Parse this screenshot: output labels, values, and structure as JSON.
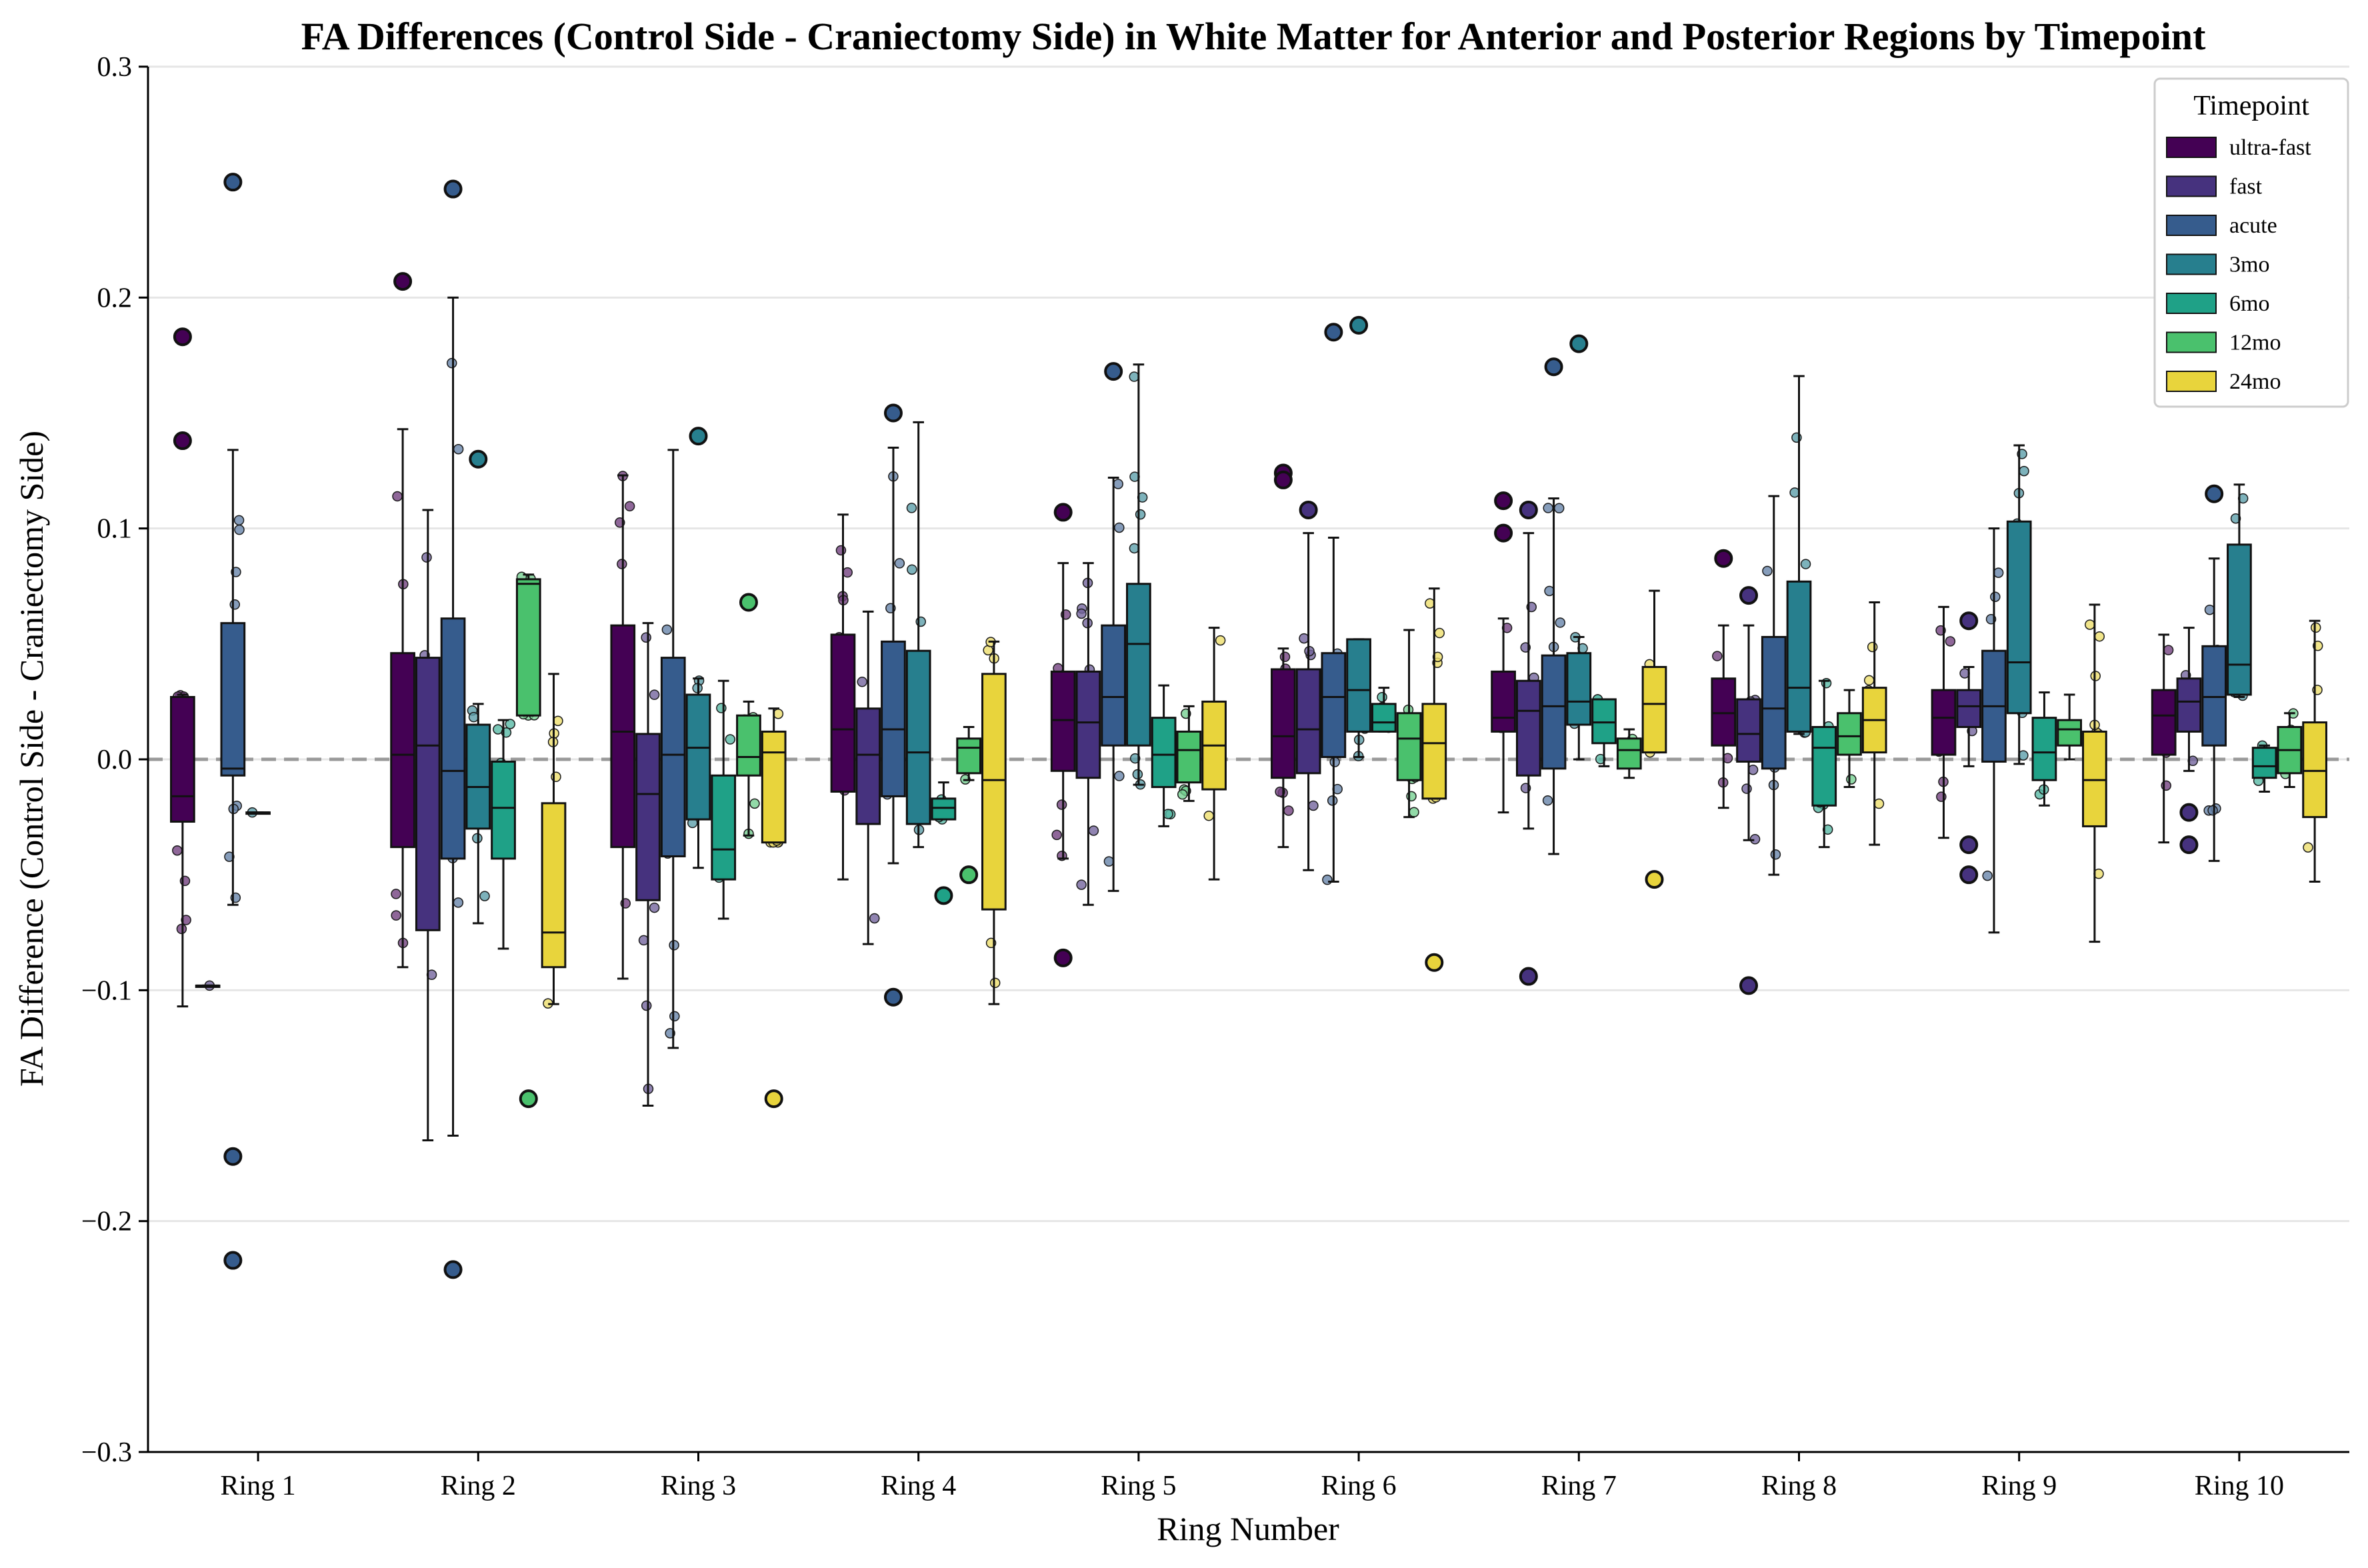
{
  "chart_data": {
    "type": "box",
    "title": "FA Differences (Control Side - Craniectomy Side) in White Matter for Anterior and Posterior Regions by Timepoint",
    "xlabel": "Ring Number",
    "ylabel": "FA Difference (Control Side - Craniectomy Side)",
    "ylim": [
      -0.3,
      0.3
    ],
    "yticks": [
      -0.3,
      -0.2,
      -0.1,
      0.0,
      0.1,
      0.2,
      0.3
    ],
    "ytick_labels": [
      "−0.3",
      "−0.2",
      "−0.1",
      "0.0",
      "0.1",
      "0.2",
      "0.3"
    ],
    "grid": "horizontal",
    "reference_line": 0.0,
    "legend_title": "Timepoint",
    "legend_position": "top-right",
    "categories": [
      "Ring 1",
      "Ring 2",
      "Ring 3",
      "Ring 4",
      "Ring 5",
      "Ring 6",
      "Ring 7",
      "Ring 8",
      "Ring 9",
      "Ring 10"
    ],
    "series": [
      {
        "name": "ultra-fast",
        "color": "#440154",
        "boxes": [
          {
            "q1": -0.027,
            "median": -0.016,
            "q3": 0.027,
            "wlo": -0.107,
            "whi": 0.028,
            "fliers": [
              0.183,
              0.138
            ]
          },
          {
            "q1": -0.038,
            "median": 0.002,
            "q3": 0.046,
            "wlo": -0.09,
            "whi": 0.143,
            "fliers": [
              0.207
            ]
          },
          {
            "q1": -0.038,
            "median": 0.012,
            "q3": 0.058,
            "wlo": -0.095,
            "whi": 0.123,
            "fliers": []
          },
          {
            "q1": -0.014,
            "median": 0.013,
            "q3": 0.054,
            "wlo": -0.052,
            "whi": 0.106,
            "fliers": []
          },
          {
            "q1": -0.005,
            "median": 0.017,
            "q3": 0.038,
            "wlo": -0.043,
            "whi": 0.085,
            "fliers": [
              0.107,
              -0.086
            ]
          },
          {
            "q1": -0.008,
            "median": 0.01,
            "q3": 0.039,
            "wlo": -0.038,
            "whi": 0.048,
            "fliers": [
              0.124,
              0.121
            ]
          },
          {
            "q1": 0.012,
            "median": 0.018,
            "q3": 0.038,
            "wlo": -0.023,
            "whi": 0.061,
            "fliers": [
              0.112,
              0.098
            ]
          },
          {
            "q1": 0.006,
            "median": 0.02,
            "q3": 0.035,
            "wlo": -0.021,
            "whi": 0.058,
            "fliers": [
              0.087
            ]
          },
          {
            "q1": 0.002,
            "median": 0.018,
            "q3": 0.03,
            "wlo": -0.034,
            "whi": 0.066,
            "fliers": []
          },
          {
            "q1": 0.002,
            "median": 0.019,
            "q3": 0.03,
            "wlo": -0.036,
            "whi": 0.054,
            "fliers": []
          }
        ]
      },
      {
        "name": "fast",
        "color": "#46327e",
        "boxes": [
          {
            "q1": -0.098,
            "median": -0.098,
            "q3": -0.098,
            "wlo": -0.098,
            "whi": -0.098,
            "fliers": []
          },
          {
            "q1": -0.074,
            "median": 0.006,
            "q3": 0.044,
            "wlo": -0.165,
            "whi": 0.108,
            "fliers": []
          },
          {
            "q1": -0.061,
            "median": -0.015,
            "q3": 0.011,
            "wlo": -0.15,
            "whi": 0.059,
            "fliers": []
          },
          {
            "q1": -0.028,
            "median": 0.002,
            "q3": 0.022,
            "wlo": -0.08,
            "whi": 0.064,
            "fliers": []
          },
          {
            "q1": -0.008,
            "median": 0.016,
            "q3": 0.038,
            "wlo": -0.063,
            "whi": 0.085,
            "fliers": []
          },
          {
            "q1": -0.006,
            "median": 0.013,
            "q3": 0.039,
            "wlo": -0.048,
            "whi": 0.098,
            "fliers": [
              0.108
            ]
          },
          {
            "q1": -0.007,
            "median": 0.021,
            "q3": 0.034,
            "wlo": -0.03,
            "whi": 0.098,
            "fliers": [
              0.108,
              -0.094
            ]
          },
          {
            "q1": -0.001,
            "median": 0.011,
            "q3": 0.026,
            "wlo": -0.035,
            "whi": 0.058,
            "fliers": [
              0.071,
              -0.098
            ]
          },
          {
            "q1": 0.014,
            "median": 0.023,
            "q3": 0.03,
            "wlo": -0.003,
            "whi": 0.04,
            "fliers": [
              0.06,
              -0.037,
              -0.05
            ]
          },
          {
            "q1": 0.012,
            "median": 0.025,
            "q3": 0.035,
            "wlo": -0.005,
            "whi": 0.057,
            "fliers": [
              -0.023,
              -0.037
            ]
          }
        ]
      },
      {
        "name": "acute",
        "color": "#365c8d",
        "boxes": [
          {
            "q1": -0.007,
            "median": -0.004,
            "q3": 0.059,
            "wlo": -0.063,
            "whi": 0.134,
            "fliers": [
              0.25,
              -0.172,
              -0.217
            ]
          },
          {
            "q1": -0.043,
            "median": -0.005,
            "q3": 0.061,
            "wlo": -0.163,
            "whi": 0.2,
            "fliers": [
              0.247,
              -0.221
            ]
          },
          {
            "q1": -0.042,
            "median": 0.002,
            "q3": 0.044,
            "wlo": -0.125,
            "whi": 0.134,
            "fliers": []
          },
          {
            "q1": -0.016,
            "median": 0.013,
            "q3": 0.051,
            "wlo": -0.045,
            "whi": 0.135,
            "fliers": [
              0.15,
              -0.103
            ]
          },
          {
            "q1": 0.006,
            "median": 0.027,
            "q3": 0.058,
            "wlo": -0.057,
            "whi": 0.122,
            "fliers": [
              0.168
            ]
          },
          {
            "q1": 0.001,
            "median": 0.027,
            "q3": 0.046,
            "wlo": -0.053,
            "whi": 0.096,
            "fliers": [
              0.185
            ]
          },
          {
            "q1": -0.004,
            "median": 0.023,
            "q3": 0.045,
            "wlo": -0.041,
            "whi": 0.113,
            "fliers": [
              0.17
            ]
          },
          {
            "q1": -0.004,
            "median": 0.022,
            "q3": 0.053,
            "wlo": -0.05,
            "whi": 0.114,
            "fliers": []
          },
          {
            "q1": -0.001,
            "median": 0.023,
            "q3": 0.047,
            "wlo": -0.075,
            "whi": 0.1,
            "fliers": []
          },
          {
            "q1": 0.006,
            "median": 0.027,
            "q3": 0.049,
            "wlo": -0.044,
            "whi": 0.087,
            "fliers": [
              0.115
            ]
          }
        ]
      },
      {
        "name": "3mo",
        "color": "#277f8e",
        "boxes": [
          {
            "q1": -0.023,
            "median": -0.023,
            "q3": -0.023,
            "wlo": -0.023,
            "whi": -0.023,
            "fliers": []
          },
          {
            "q1": -0.03,
            "median": -0.012,
            "q3": 0.015,
            "wlo": -0.071,
            "whi": 0.024,
            "fliers": [
              0.13
            ]
          },
          {
            "q1": -0.026,
            "median": 0.005,
            "q3": 0.028,
            "wlo": -0.047,
            "whi": 0.035,
            "fliers": [
              0.14
            ]
          },
          {
            "q1": -0.028,
            "median": 0.003,
            "q3": 0.047,
            "wlo": -0.038,
            "whi": 0.146,
            "fliers": []
          },
          {
            "q1": 0.006,
            "median": 0.05,
            "q3": 0.076,
            "wlo": -0.011,
            "whi": 0.171,
            "fliers": []
          },
          {
            "q1": 0.012,
            "median": 0.03,
            "q3": 0.052,
            "wlo": 0.001,
            "whi": 0.052,
            "fliers": [
              0.188
            ]
          },
          {
            "q1": 0.015,
            "median": 0.025,
            "q3": 0.046,
            "wlo": 0.0,
            "whi": 0.053,
            "fliers": [
              0.18
            ]
          },
          {
            "q1": 0.012,
            "median": 0.031,
            "q3": 0.077,
            "wlo": 0.011,
            "whi": 0.166,
            "fliers": []
          },
          {
            "q1": 0.02,
            "median": 0.042,
            "q3": 0.103,
            "wlo": -0.002,
            "whi": 0.136,
            "fliers": []
          },
          {
            "q1": 0.028,
            "median": 0.041,
            "q3": 0.093,
            "wlo": 0.027,
            "whi": 0.119,
            "fliers": []
          }
        ]
      },
      {
        "name": "6mo",
        "color": "#1fa187",
        "boxes": [
          null,
          {
            "q1": -0.043,
            "median": -0.021,
            "q3": -0.001,
            "wlo": -0.082,
            "whi": 0.017,
            "fliers": []
          },
          {
            "q1": -0.052,
            "median": -0.039,
            "q3": -0.007,
            "wlo": -0.069,
            "whi": 0.034,
            "fliers": []
          },
          {
            "q1": -0.026,
            "median": -0.021,
            "q3": -0.017,
            "wlo": -0.026,
            "whi": -0.01,
            "fliers": [
              -0.059
            ]
          },
          {
            "q1": -0.012,
            "median": 0.002,
            "q3": 0.018,
            "wlo": -0.029,
            "whi": 0.032,
            "fliers": []
          },
          {
            "q1": 0.012,
            "median": 0.016,
            "q3": 0.024,
            "wlo": 0.012,
            "whi": 0.031,
            "fliers": []
          },
          {
            "q1": 0.007,
            "median": 0.016,
            "q3": 0.026,
            "wlo": -0.003,
            "whi": 0.026,
            "fliers": []
          },
          {
            "q1": -0.02,
            "median": 0.005,
            "q3": 0.014,
            "wlo": -0.038,
            "whi": 0.034,
            "fliers": []
          },
          {
            "q1": -0.009,
            "median": 0.003,
            "q3": 0.018,
            "wlo": -0.02,
            "whi": 0.029,
            "fliers": []
          },
          {
            "q1": -0.008,
            "median": -0.003,
            "q3": 0.005,
            "wlo": -0.014,
            "whi": 0.006,
            "fliers": []
          }
        ]
      },
      {
        "name": "12mo",
        "color": "#4ac16d",
        "boxes": [
          null,
          {
            "q1": 0.019,
            "median": 0.076,
            "q3": 0.078,
            "wlo": 0.019,
            "whi": 0.08,
            "fliers": [
              -0.147
            ]
          },
          {
            "q1": -0.007,
            "median": 0.001,
            "q3": 0.019,
            "wlo": -0.033,
            "whi": 0.025,
            "fliers": [
              0.068
            ]
          },
          {
            "q1": -0.006,
            "median": 0.005,
            "q3": 0.009,
            "wlo": -0.009,
            "whi": 0.014,
            "fliers": [
              -0.05
            ]
          },
          {
            "q1": -0.01,
            "median": 0.004,
            "q3": 0.012,
            "wlo": -0.018,
            "whi": 0.023,
            "fliers": []
          },
          {
            "q1": -0.009,
            "median": 0.009,
            "q3": 0.02,
            "wlo": -0.025,
            "whi": 0.056,
            "fliers": []
          },
          {
            "q1": -0.004,
            "median": 0.004,
            "q3": 0.009,
            "wlo": -0.008,
            "whi": 0.013,
            "fliers": []
          },
          {
            "q1": 0.002,
            "median": 0.01,
            "q3": 0.02,
            "wlo": -0.012,
            "whi": 0.03,
            "fliers": []
          },
          {
            "q1": 0.006,
            "median": 0.013,
            "q3": 0.017,
            "wlo": 0.0,
            "whi": 0.028,
            "fliers": []
          },
          {
            "q1": -0.006,
            "median": 0.004,
            "q3": 0.014,
            "wlo": -0.012,
            "whi": 0.02,
            "fliers": []
          }
        ]
      },
      {
        "name": "24mo",
        "color": "#e8d43c",
        "boxes": [
          null,
          {
            "q1": -0.09,
            "median": -0.075,
            "q3": -0.019,
            "wlo": -0.106,
            "whi": 0.037,
            "fliers": []
          },
          {
            "q1": -0.036,
            "median": 0.003,
            "q3": 0.012,
            "wlo": -0.036,
            "whi": 0.022,
            "fliers": [
              -0.147
            ]
          },
          {
            "q1": -0.065,
            "median": -0.009,
            "q3": 0.037,
            "wlo": -0.106,
            "whi": 0.051,
            "fliers": []
          },
          {
            "q1": -0.013,
            "median": 0.006,
            "q3": 0.025,
            "wlo": -0.052,
            "whi": 0.057,
            "fliers": []
          },
          {
            "q1": -0.017,
            "median": 0.007,
            "q3": 0.024,
            "wlo": -0.017,
            "whi": 0.074,
            "fliers": [
              -0.088
            ]
          },
          {
            "q1": 0.003,
            "median": 0.024,
            "q3": 0.04,
            "wlo": 0.003,
            "whi": 0.073,
            "fliers": [
              -0.052
            ]
          },
          {
            "q1": 0.003,
            "median": 0.017,
            "q3": 0.031,
            "wlo": -0.037,
            "whi": 0.068,
            "fliers": []
          },
          {
            "q1": -0.029,
            "median": -0.009,
            "q3": 0.012,
            "wlo": -0.079,
            "whi": 0.067,
            "fliers": []
          },
          {
            "q1": -0.025,
            "median": -0.005,
            "q3": 0.016,
            "wlo": -0.053,
            "whi": 0.06,
            "fliers": []
          }
        ]
      }
    ]
  }
}
